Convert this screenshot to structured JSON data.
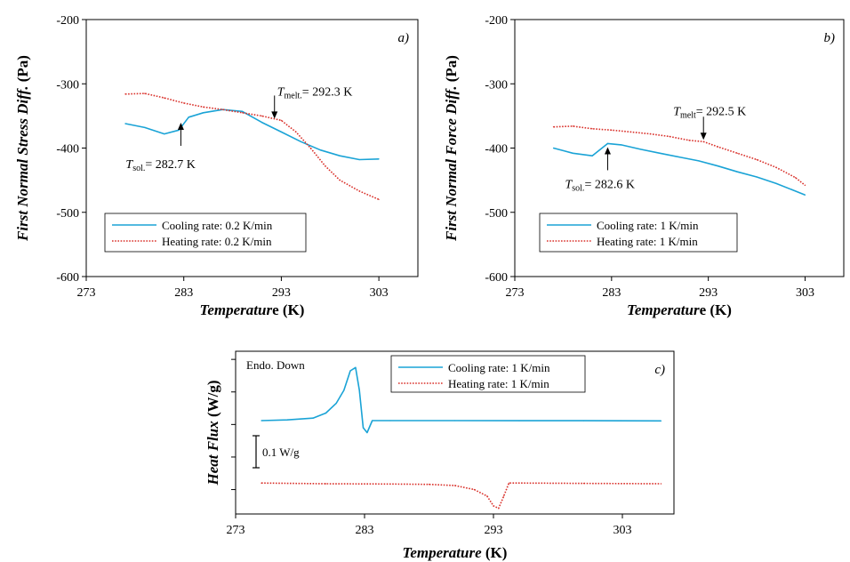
{
  "colors": {
    "cooling": "#1aa3d6",
    "heating": "#d9302a",
    "axis": "#000000"
  },
  "chart_data": [
    {
      "id": "a",
      "type": "line",
      "panel_label": "a)",
      "ylabel": {
        "italic": "First Normal Stress Diff.",
        "unit": "(Pa)"
      },
      "xlabel": {
        "italic": "Temperatur",
        "rest": "e (K)"
      },
      "xlim": [
        273,
        307
      ],
      "ylim": [
        -600,
        -200
      ],
      "xticks": [
        273,
        283,
        293,
        303
      ],
      "yticks": [
        -600,
        -500,
        -400,
        -300,
        -200
      ],
      "grid": false,
      "legend_position": "bottom-left",
      "series": [
        {
          "name": "Cooling rate: 0.2 K/min",
          "style": "solid",
          "color_key": "cooling",
          "x": [
            277.0,
            279.0,
            281.0,
            282.5,
            283.5,
            285.0,
            287.0,
            289.0,
            291.0,
            293.0,
            295.0,
            297.0,
            299.0,
            301.0,
            303.0
          ],
          "y": [
            -362,
            -368,
            -378,
            -372,
            -352,
            -345,
            -340,
            -343,
            -360,
            -375,
            -390,
            -403,
            -412,
            -418,
            -417
          ]
        },
        {
          "name": "Heating rate: 0.2 K/min",
          "style": "dotted",
          "color_key": "heating",
          "x": [
            277.0,
            279.0,
            281.0,
            283.0,
            285.0,
            287.0,
            289.0,
            291.0,
            293.0,
            294.5,
            296.0,
            297.5,
            299.0,
            301.0,
            303.0
          ],
          "y": [
            -316,
            -315,
            -322,
            -330,
            -336,
            -340,
            -345,
            -350,
            -357,
            -375,
            -400,
            -428,
            -450,
            -467,
            -480
          ]
        }
      ],
      "annotations": [
        {
          "main": "T",
          "sub": "melt.",
          "rest": "= 292.3 K",
          "x": 292.3,
          "y": -357,
          "dir": "down"
        },
        {
          "main": "T",
          "sub": "sol.",
          "rest": "= 282.7 K",
          "x": 282.7,
          "y": -355,
          "dir": "up"
        }
      ]
    },
    {
      "id": "b",
      "type": "line",
      "panel_label": "b)",
      "ylabel": {
        "italic": "First Normal Force Diff.",
        "unit": "(Pa)"
      },
      "xlabel": {
        "italic": "Temperatur",
        "rest": "e (K)"
      },
      "xlim": [
        273,
        307
      ],
      "ylim": [
        -600,
        -200
      ],
      "xticks": [
        273,
        283,
        293,
        303
      ],
      "yticks": [
        -600,
        -500,
        -400,
        -300,
        -200
      ],
      "grid": false,
      "legend_position": "bottom-left",
      "series": [
        {
          "name": "Cooling rate: 1 K/min",
          "style": "solid",
          "color_key": "cooling",
          "x": [
            277.0,
            279.0,
            281.0,
            282.6,
            284.0,
            286.0,
            288.0,
            290.0,
            292.0,
            294.0,
            296.0,
            298.0,
            300.0,
            302.0,
            303.0
          ],
          "y": [
            -400,
            -408,
            -412,
            -393,
            -395,
            -402,
            -408,
            -414,
            -420,
            -428,
            -437,
            -445,
            -455,
            -467,
            -473
          ]
        },
        {
          "name": "Heating rate: 1 K/min",
          "style": "dotted",
          "color_key": "heating",
          "x": [
            277.0,
            279.0,
            281.0,
            283.0,
            285.0,
            287.0,
            289.0,
            291.0,
            292.5,
            294.0,
            296.0,
            298.0,
            300.0,
            302.0,
            303.0
          ],
          "y": [
            -367,
            -366,
            -370,
            -372,
            -375,
            -378,
            -382,
            -388,
            -390,
            -398,
            -408,
            -418,
            -430,
            -446,
            -458
          ]
        }
      ],
      "annotations": [
        {
          "main": "T",
          "sub": "melt",
          "rest": "= 292.5 K",
          "x": 292.5,
          "y": -390,
          "dir": "down"
        },
        {
          "main": "T",
          "sub": "sol.",
          "rest": "= 282.6 K",
          "x": 282.6,
          "y": -393,
          "dir": "up"
        }
      ]
    },
    {
      "id": "c",
      "type": "line",
      "panel_label": "c)",
      "ylabel": {
        "italic": "Heat Flux",
        "unit": "(W/g)"
      },
      "xlabel": {
        "italic": "Temperature",
        "rest": " (K)"
      },
      "xlim": [
        273,
        307
      ],
      "ylim": [
        0,
        1
      ],
      "xticks": [
        273,
        283,
        293,
        303
      ],
      "yticks": [
        0.15,
        0.35,
        0.55,
        0.75,
        0.95
      ],
      "show_ytick_labels": false,
      "grid": false,
      "legend_position": "top-center",
      "corner_text": "Endo. Down",
      "scale_bar_label": "0.1 W/g",
      "series": [
        {
          "name": "Cooling rate: 1 K/min",
          "style": "solid",
          "color_key": "cooling",
          "x": [
            275.0,
            277.0,
            279.0,
            280.0,
            280.8,
            281.4,
            281.9,
            282.3,
            282.6,
            282.9,
            283.2,
            283.6,
            285.0,
            290.0,
            295.0,
            300.0,
            306.0
          ],
          "y": [
            0.574,
            0.578,
            0.589,
            0.62,
            0.68,
            0.76,
            0.88,
            0.9,
            0.76,
            0.53,
            0.5,
            0.574,
            0.574,
            0.574,
            0.573,
            0.573,
            0.572
          ]
        },
        {
          "name": "Heating rate: 1 K/min",
          "style": "dotted",
          "color_key": "heating",
          "x": [
            275.0,
            280.0,
            285.0,
            288.0,
            290.0,
            291.5,
            292.5,
            293.0,
            293.4,
            293.8,
            294.2,
            295.0,
            300.0,
            306.0
          ],
          "y": [
            0.19,
            0.186,
            0.184,
            0.182,
            0.175,
            0.15,
            0.11,
            0.05,
            0.035,
            0.11,
            0.19,
            0.19,
            0.188,
            0.186
          ]
        }
      ]
    }
  ]
}
